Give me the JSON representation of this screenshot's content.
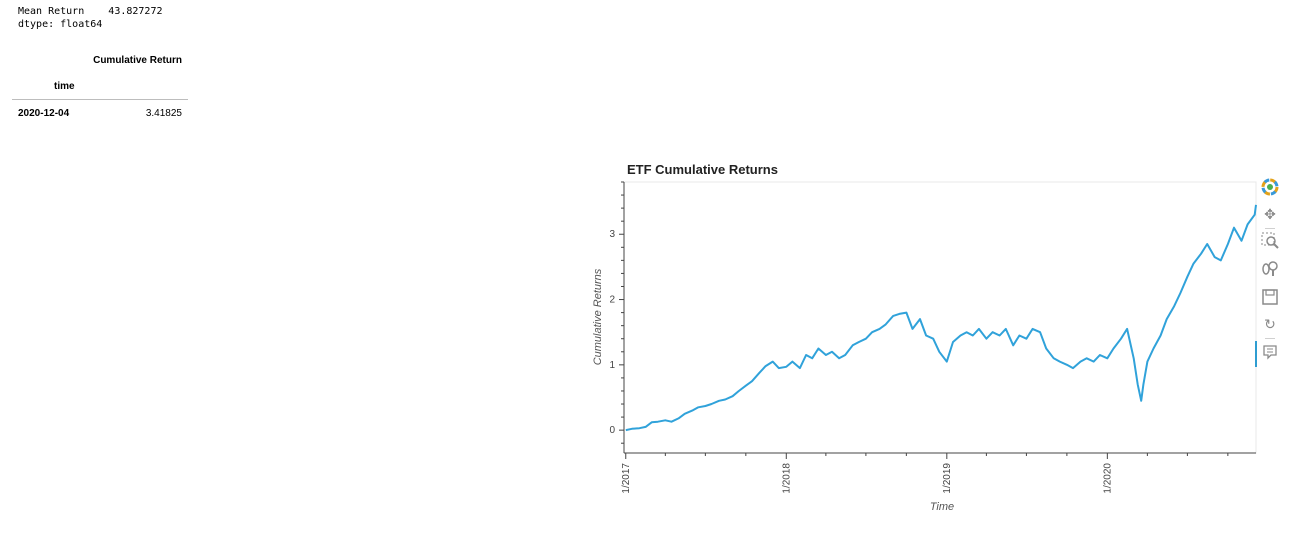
{
  "series_output": {
    "line1": "Mean Return    43.827272",
    "line2": "dtype: float64"
  },
  "dataframe": {
    "column_header": "Cumulative Return",
    "index_name": "time",
    "rows": [
      {
        "index": "2020-12-04",
        "value": "3.41825"
      }
    ]
  },
  "toolbar": {
    "tools": [
      "bokeh-logo-icon",
      "pan-icon",
      "box-zoom-icon",
      "wheel-zoom-icon",
      "save-icon",
      "reset-icon",
      "hover-icon"
    ]
  },
  "chart_data": {
    "type": "line",
    "title": "ETF Cumulative Returns",
    "xlabel": "Time",
    "ylabel": "Cumulative Returns",
    "x_ticks": [
      "1/2017",
      "1/2018",
      "1/2019",
      "1/2020"
    ],
    "y_ticks": [
      0,
      1,
      2,
      3
    ],
    "xlim": [
      "2016-12-28",
      "2020-12-04"
    ],
    "ylim": [
      -0.35,
      3.8
    ],
    "line_color": "#30a2da",
    "series": [
      {
        "x": [
          "2017-01-01",
          "2017-01-15",
          "2017-02-01",
          "2017-02-15",
          "2017-03-01",
          "2017-03-15",
          "2017-04-01",
          "2017-04-15",
          "2017-05-01",
          "2017-05-15",
          "2017-06-01",
          "2017-06-15",
          "2017-07-01",
          "2017-07-15",
          "2017-08-01",
          "2017-08-15",
          "2017-09-01",
          "2017-09-15",
          "2017-10-01",
          "2017-10-15",
          "2017-11-01",
          "2017-11-15",
          "2017-12-01",
          "2017-12-15",
          "2018-01-01",
          "2018-01-15",
          "2018-02-01",
          "2018-02-15",
          "2018-03-01",
          "2018-03-15",
          "2018-04-01",
          "2018-04-15",
          "2018-05-01",
          "2018-05-15",
          "2018-06-01",
          "2018-06-15",
          "2018-07-01",
          "2018-07-15",
          "2018-08-01",
          "2018-08-15",
          "2018-09-01",
          "2018-09-15",
          "2018-10-01",
          "2018-10-15",
          "2018-11-01",
          "2018-11-15",
          "2018-12-01",
          "2018-12-15",
          "2019-01-01",
          "2019-01-15",
          "2019-02-01",
          "2019-02-15",
          "2019-03-01",
          "2019-03-15",
          "2019-04-01",
          "2019-04-15",
          "2019-05-01",
          "2019-05-15",
          "2019-06-01",
          "2019-06-15",
          "2019-07-01",
          "2019-07-15",
          "2019-08-01",
          "2019-08-15",
          "2019-09-01",
          "2019-09-15",
          "2019-10-01",
          "2019-10-15",
          "2019-11-01",
          "2019-11-15",
          "2019-12-01",
          "2019-12-15",
          "2020-01-01",
          "2020-01-15",
          "2020-02-01",
          "2020-02-15",
          "2020-03-01",
          "2020-03-10",
          "2020-03-18",
          "2020-03-23",
          "2020-04-01",
          "2020-04-15",
          "2020-05-01",
          "2020-05-15",
          "2020-06-01",
          "2020-06-15",
          "2020-07-01",
          "2020-07-15",
          "2020-08-01",
          "2020-08-15",
          "2020-09-01",
          "2020-09-15",
          "2020-10-01",
          "2020-10-15",
          "2020-11-01",
          "2020-11-15",
          "2020-12-01",
          "2020-12-04"
        ],
        "y": [
          0.0,
          0.02,
          0.03,
          0.05,
          0.12,
          0.13,
          0.15,
          0.13,
          0.18,
          0.25,
          0.3,
          0.35,
          0.37,
          0.4,
          0.45,
          0.47,
          0.52,
          0.6,
          0.68,
          0.75,
          0.88,
          0.98,
          1.05,
          0.95,
          0.97,
          1.05,
          0.95,
          1.15,
          1.1,
          1.25,
          1.15,
          1.2,
          1.1,
          1.15,
          1.3,
          1.35,
          1.4,
          1.5,
          1.55,
          1.62,
          1.75,
          1.78,
          1.8,
          1.55,
          1.7,
          1.45,
          1.4,
          1.2,
          1.05,
          1.35,
          1.45,
          1.5,
          1.45,
          1.55,
          1.4,
          1.5,
          1.45,
          1.55,
          1.3,
          1.45,
          1.4,
          1.55,
          1.5,
          1.25,
          1.1,
          1.05,
          1.0,
          0.95,
          1.05,
          1.1,
          1.05,
          1.15,
          1.1,
          1.25,
          1.4,
          1.55,
          1.1,
          0.7,
          0.45,
          0.7,
          1.05,
          1.25,
          1.45,
          1.7,
          1.9,
          2.1,
          2.35,
          2.55,
          2.7,
          2.85,
          2.65,
          2.6,
          2.85,
          3.1,
          2.9,
          3.15,
          3.3,
          3.45
        ]
      }
    ]
  }
}
